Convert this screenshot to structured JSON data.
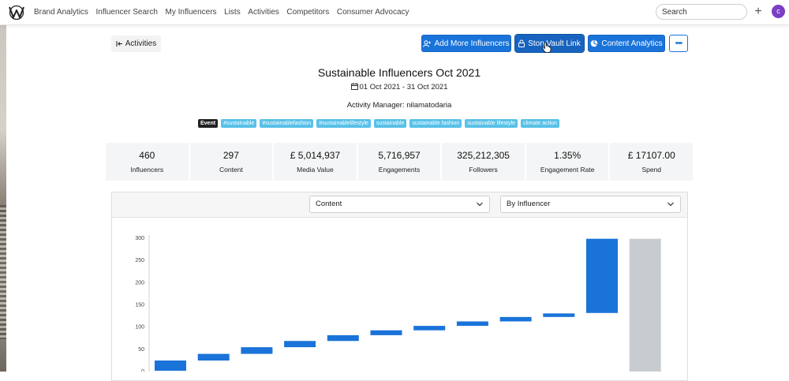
{
  "nav": {
    "items": [
      "Brand Analytics",
      "Influencer Search",
      "My Influencers",
      "Lists",
      "Activities",
      "Competitors",
      "Consumer Advocacy"
    ],
    "search_placeholder": "Search",
    "plus": "+",
    "avatar_initial": "c"
  },
  "toolbar": {
    "back_label": "Activities",
    "add_label": "Add More Influencers",
    "storyvault_label": "StoryVault Link",
    "analytics_label": "Content Analytics",
    "more_label": "•••"
  },
  "activity": {
    "title": "Sustainable Influencers Oct 2021",
    "dates": "01 Oct 2021 - 31 Oct 2021",
    "manager_label": "Activity Manager:",
    "manager": "nilamatodaria",
    "tags": [
      "Event",
      "#sustainable",
      "#sustainablefashion",
      "#sustainablelifestyle",
      "sustainable",
      "sustainable fashion",
      "sustainable lifestyle",
      "climate action"
    ]
  },
  "stats": [
    {
      "value": "460",
      "label": "Influencers"
    },
    {
      "value": "297",
      "label": "Content"
    },
    {
      "value": "£ 5,014,937",
      "label": "Media Value"
    },
    {
      "value": "5,716,957",
      "label": "Engagements"
    },
    {
      "value": "325,212,305",
      "label": "Followers"
    },
    {
      "value": "1.35%",
      "label": "Engagement Rate"
    },
    {
      "value": "£ 17107.00",
      "label": "Spend"
    }
  ],
  "filters": {
    "metric": "Content",
    "group": "By Influencer"
  },
  "colors": {
    "primary": "#1a73d9",
    "tag": "#58c1e8",
    "total_bar": "#c8ccd0"
  },
  "chart_data": {
    "type": "bar",
    "subtype": "waterfall",
    "ylim": [
      0,
      300
    ],
    "yticks": [
      "0",
      "50",
      "100",
      "150",
      "200",
      "250",
      "300"
    ],
    "steps": [
      {
        "start": 0,
        "end": 23
      },
      {
        "start": 23,
        "end": 38
      },
      {
        "start": 38,
        "end": 53
      },
      {
        "start": 53,
        "end": 67
      },
      {
        "start": 67,
        "end": 80
      },
      {
        "start": 80,
        "end": 91
      },
      {
        "start": 91,
        "end": 101
      },
      {
        "start": 101,
        "end": 111
      },
      {
        "start": 111,
        "end": 121
      },
      {
        "start": 121,
        "end": 129
      },
      {
        "start": 130,
        "end": 297
      }
    ],
    "total": 297
  }
}
